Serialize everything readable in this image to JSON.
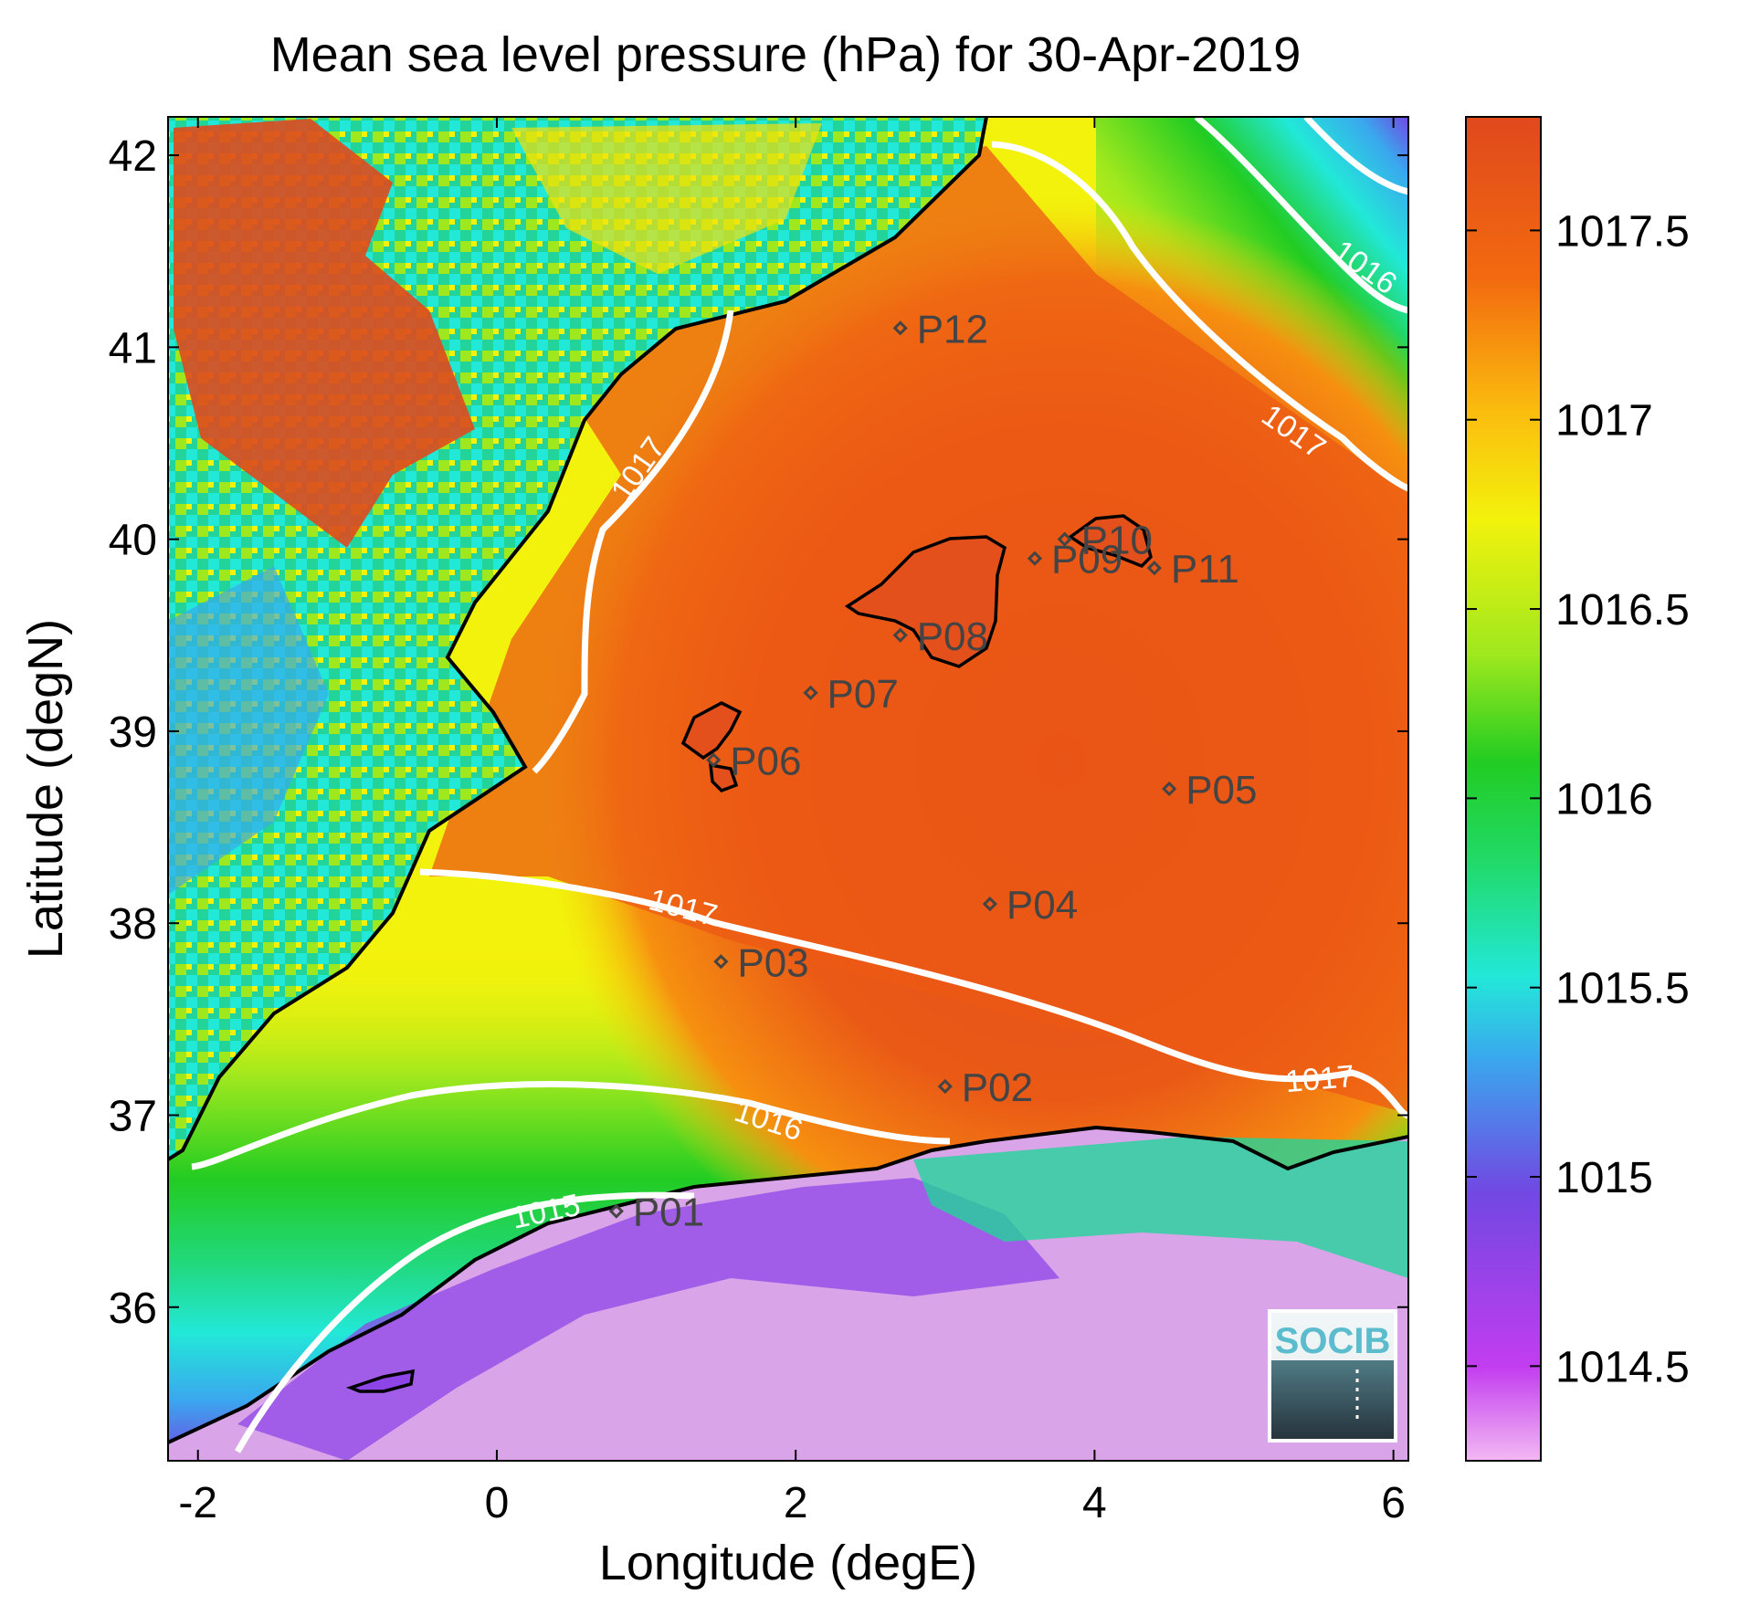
{
  "title": "Mean sea level pressure (hPa) for 30-Apr-2019",
  "xlabel": "Longitude (degE)",
  "ylabel": "Latitude (degN)",
  "x_ticks": [
    "-2",
    "0",
    "2",
    "4",
    "6"
  ],
  "y_ticks": [
    "42",
    "41",
    "40",
    "39",
    "38",
    "37",
    "36"
  ],
  "colorbar": {
    "ticks": [
      "1017.5",
      "1017",
      "1016.5",
      "1016",
      "1015.5",
      "1015",
      "1014.5"
    ],
    "colormap": [
      "#f3b8f2",
      "#c23df0",
      "#7148e2",
      "#3aa8ee",
      "#22e8d8",
      "#21d964",
      "#22cc22",
      "#9fe81e",
      "#f2f20c",
      "#fbbd0e",
      "#f26a0f",
      "#e0491d"
    ]
  },
  "stations": [
    {
      "id": "P01",
      "label": "P01",
      "lon": 0.8,
      "lat": 36.5
    },
    {
      "id": "P02",
      "label": "P02",
      "lon": 3.0,
      "lat": 37.15
    },
    {
      "id": "P03",
      "label": "P03",
      "lon": 1.5,
      "lat": 37.8
    },
    {
      "id": "P04",
      "label": "P04",
      "lon": 3.3,
      "lat": 38.1
    },
    {
      "id": "P05",
      "label": "P05",
      "lon": 4.5,
      "lat": 38.7
    },
    {
      "id": "P06",
      "label": "P06",
      "lon": 1.45,
      "lat": 38.85
    },
    {
      "id": "P07",
      "label": "P07",
      "lon": 2.1,
      "lat": 39.2
    },
    {
      "id": "P08",
      "label": "P08",
      "lon": 2.7,
      "lat": 39.5
    },
    {
      "id": "P09",
      "label": "P09",
      "lon": 3.6,
      "lat": 39.9
    },
    {
      "id": "P10",
      "label": "P10",
      "lon": 3.8,
      "lat": 40.0
    },
    {
      "id": "P11",
      "label": "P11",
      "lon": 4.4,
      "lat": 39.85
    },
    {
      "id": "P12",
      "label": "P12",
      "lon": 2.7,
      "lat": 41.1
    }
  ],
  "contours": [
    {
      "label": "1016",
      "count": 3
    },
    {
      "label": "1017",
      "count": 4
    },
    {
      "label": "1015",
      "count": 1
    }
  ],
  "logo": {
    "text": "SOCIB"
  },
  "colors": {
    "contour": "#ffffff",
    "coast": "#000000",
    "station": "#444444"
  }
}
